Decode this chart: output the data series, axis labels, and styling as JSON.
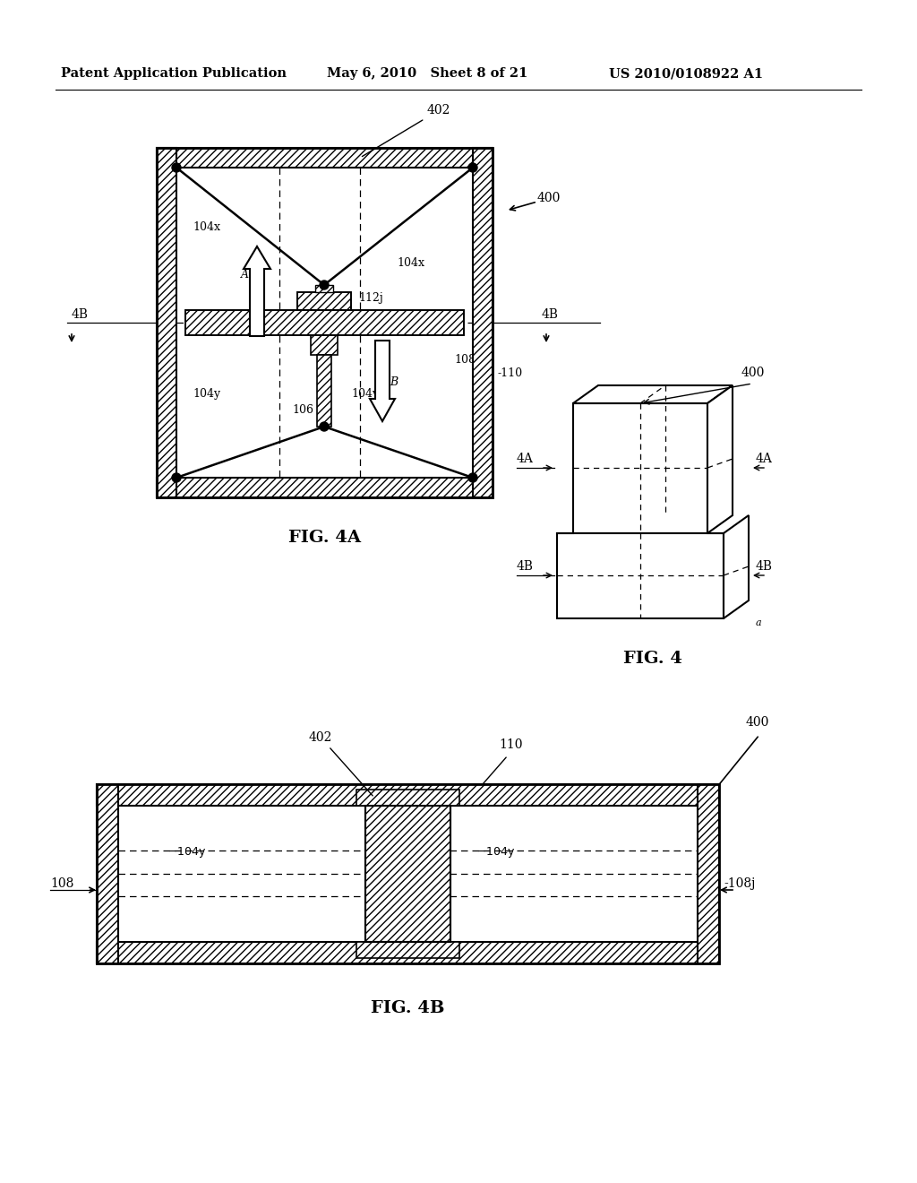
{
  "bg_color": "#ffffff",
  "header_left": "Patent Application Publication",
  "header_mid": "May 6, 2010   Sheet 8 of 21",
  "header_right": "US 2010/0108922 A1"
}
